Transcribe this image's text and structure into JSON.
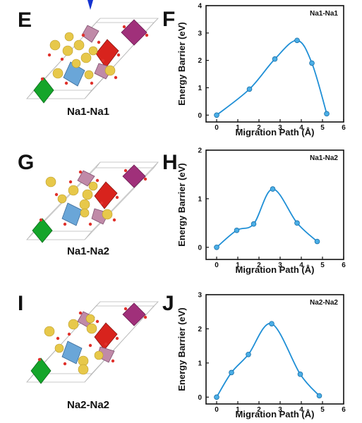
{
  "panels": [
    {
      "letter": "E",
      "caption": "Na1-Na1"
    },
    {
      "letter": "G",
      "caption": "Na1-Na2"
    },
    {
      "letter": "I",
      "caption": "Na2-Na2"
    }
  ],
  "colors": {
    "curve": "#1f8fd6",
    "marker": "#4aaee6",
    "octa_red": "#d8231d",
    "octa_blue": "#6aa6d8",
    "octa_purple": "#a0307a",
    "octa_green": "#14a52a",
    "atom_yellow": "#e7c84a",
    "atom_red": "#e0302a",
    "arrow": "#1533d0"
  },
  "chart_data": [
    {
      "letter": "F",
      "type": "line",
      "title": "Na1-Na1",
      "xlabel": "Migration Path (Å)",
      "ylabel": "Energy Barrier (eV)",
      "xlim": [
        -0.5,
        6
      ],
      "ylim": [
        -0.25,
        4
      ],
      "xticks": [
        0,
        1,
        2,
        3,
        4,
        5,
        6
      ],
      "yticks": [
        0,
        1,
        2,
        3,
        4
      ],
      "x": [
        0,
        1.55,
        2.75,
        3.8,
        4.5,
        5.2
      ],
      "y": [
        0,
        0.95,
        2.05,
        2.73,
        1.9,
        0.05
      ]
    },
    {
      "letter": "H",
      "type": "line",
      "title": "Na1-Na2",
      "xlabel": "Migration Path (Å)",
      "ylabel": "Energy Barrier (eV)",
      "xlim": [
        -0.5,
        6
      ],
      "ylim": [
        -0.25,
        2
      ],
      "xticks": [
        0,
        1,
        2,
        3,
        4,
        5,
        6
      ],
      "yticks": [
        0,
        1,
        2
      ],
      "x": [
        0,
        0.95,
        1.75,
        2.65,
        3.8,
        4.75
      ],
      "y": [
        0,
        0.35,
        0.48,
        1.2,
        0.5,
        0.12
      ]
    },
    {
      "letter": "J",
      "type": "line",
      "title": "Na2-Na2",
      "xlabel": "Migration Path (Å)",
      "ylabel": "Energy Barrier (eV)",
      "xlim": [
        -0.5,
        6
      ],
      "ylim": [
        -0.2,
        3
      ],
      "xticks": [
        0,
        1,
        2,
        3,
        4,
        5,
        6
      ],
      "yticks": [
        0,
        1,
        2,
        3
      ],
      "x": [
        0,
        0.7,
        1.5,
        2.6,
        3.95,
        4.85
      ],
      "y": [
        0,
        0.72,
        1.25,
        2.15,
        0.67,
        0.04
      ]
    }
  ]
}
